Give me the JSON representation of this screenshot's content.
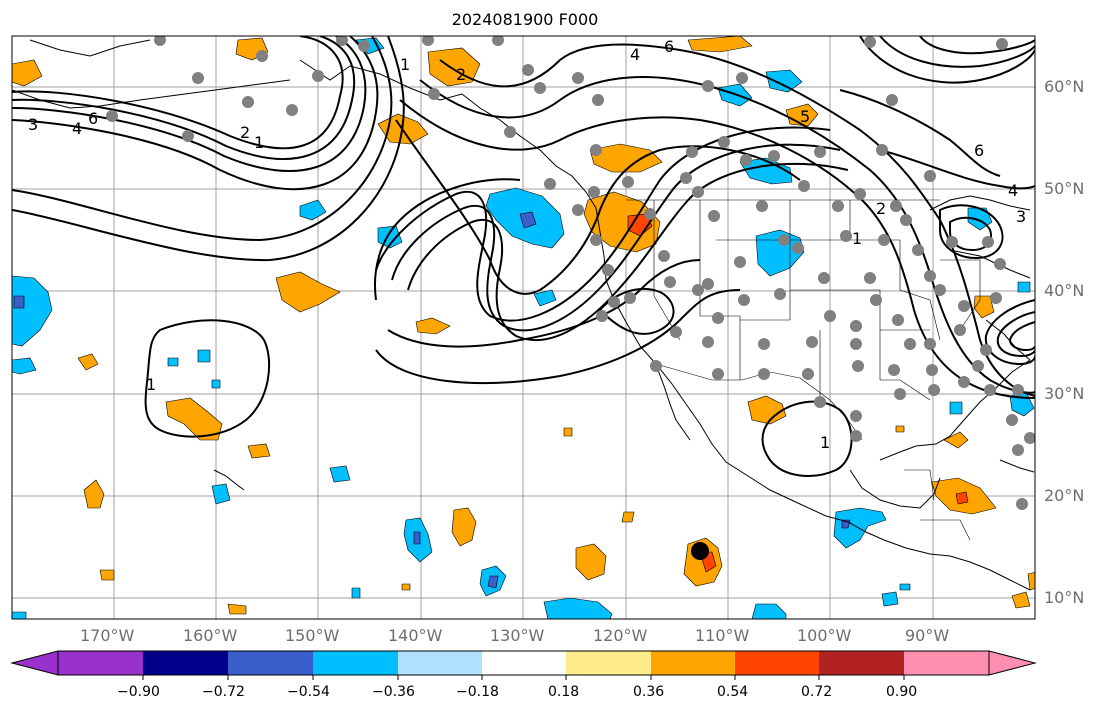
{
  "title": "2024081900 F000",
  "map": {
    "projection": "plate carree",
    "lon_range": [
      -180,
      -80
    ],
    "lat_range": [
      8,
      65
    ],
    "lon_labels": [
      "170°W",
      "160°W",
      "150°W",
      "140°W",
      "130°W",
      "120°W",
      "110°W",
      "100°W",
      "90°W"
    ],
    "lat_labels": [
      "60°N",
      "50°N",
      "40°N",
      "30°N",
      "20°N",
      "10°N"
    ],
    "gridlines": true,
    "contour_color": "#000000",
    "contour_labels": [
      "6",
      "4",
      "3",
      "2",
      "1",
      "1",
      "2",
      "6",
      "4",
      "3",
      "2",
      "1",
      "1",
      "1",
      "4",
      "5",
      "6"
    ],
    "station_marker_color": "#808080",
    "highlight_marker_color": "#000000"
  },
  "colorbar": {
    "ticks": [
      "−0.90",
      "−0.72",
      "−0.54",
      "−0.36",
      "−0.18",
      "0.18",
      "0.36",
      "0.54",
      "0.72",
      "0.90"
    ],
    "colors": [
      "#9932cc",
      "#00008b",
      "#3a5fcd",
      "#00bfff",
      "#b0e2ff",
      "#ffffff",
      "#ffec8b",
      "#ffa500",
      "#ff4500",
      "#b22222",
      "#ff8fb0"
    ]
  }
}
